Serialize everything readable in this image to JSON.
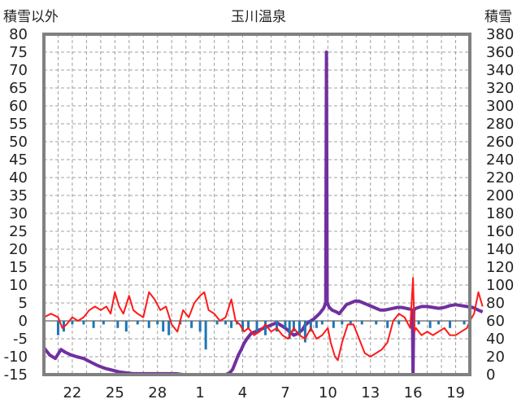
{
  "chart_data": {
    "type": "line",
    "title": "玉川温泉",
    "ylabel_left": "積雪以外",
    "ylabel_right": "積雪",
    "ylim_left": [
      -15,
      80
    ],
    "ylim_right": [
      0,
      380
    ],
    "yticks_left": [
      80,
      75,
      70,
      65,
      60,
      55,
      50,
      45,
      40,
      35,
      30,
      25,
      20,
      15,
      10,
      5,
      0,
      -5,
      -10,
      -15
    ],
    "yticks_right": [
      380,
      360,
      340,
      320,
      300,
      280,
      260,
      240,
      220,
      200,
      180,
      160,
      140,
      120,
      100,
      80,
      60,
      40,
      20,
      0
    ],
    "xlim": [
      20,
      50
    ],
    "xticks": [
      {
        "x": 22,
        "label": "22"
      },
      {
        "x": 25,
        "label": "25"
      },
      {
        "x": 28,
        "label": "28"
      },
      {
        "x": 31,
        "label": "1"
      },
      {
        "x": 34,
        "label": "4"
      },
      {
        "x": 37,
        "label": "7"
      },
      {
        "x": 40,
        "label": "10"
      },
      {
        "x": 43,
        "label": "13"
      },
      {
        "x": 46,
        "label": "16"
      },
      {
        "x": 49,
        "label": "19"
      }
    ],
    "grid": true,
    "colors": {
      "temperature": "#ff1a1a",
      "snow_depth": "#7030a0",
      "precipitation": "#1f77b4",
      "frame": "#808080",
      "grid": "#a0a0a0"
    },
    "series": [
      {
        "key": "temperature",
        "axis": "left",
        "x": [
          20.0,
          20.5,
          21.0,
          21.3,
          21.6,
          22.0,
          22.4,
          22.8,
          23.2,
          23.6,
          24.0,
          24.4,
          24.7,
          25.0,
          25.3,
          25.6,
          26.0,
          26.3,
          26.6,
          27.0,
          27.4,
          27.8,
          28.2,
          28.6,
          29.0,
          29.4,
          29.8,
          30.2,
          30.6,
          31.0,
          31.3,
          31.6,
          32.0,
          32.4,
          32.8,
          33.2,
          33.5,
          33.8,
          34.1,
          34.4,
          34.8,
          35.2,
          35.6,
          36.0,
          36.4,
          36.8,
          37.2,
          37.6,
          38.0,
          38.4,
          38.8,
          39.2,
          39.6,
          40.0,
          40.2,
          40.5,
          40.7,
          41.0,
          41.4,
          41.8,
          42.2,
          42.6,
          43.0,
          43.4,
          43.8,
          44.2,
          44.6,
          45.0,
          45.4,
          45.8,
          46.0,
          46.1,
          46.2,
          46.6,
          47.0,
          47.4,
          47.8,
          48.2,
          48.6,
          49.0,
          49.4,
          49.8,
          50.0,
          50.3,
          50.6,
          50.9
        ],
        "y": [
          1,
          2,
          1,
          -2,
          -1,
          1,
          0,
          1,
          3,
          4,
          3,
          4,
          2,
          8,
          4,
          2,
          7,
          3,
          2,
          1,
          8,
          6,
          3,
          4,
          -1,
          -3,
          3,
          1,
          5,
          7,
          8,
          3,
          2,
          0,
          1,
          6,
          0,
          -1,
          -3,
          -2,
          -4,
          -3,
          -1,
          -3,
          -2,
          -4,
          -5,
          -2,
          -4,
          -5,
          -2,
          -5,
          -4,
          -2,
          -6,
          -10,
          -11,
          -6,
          -1,
          -1,
          -5,
          -9,
          -10,
          -9,
          -8,
          -6,
          0,
          2,
          1,
          -2,
          12,
          -3,
          -2,
          -4,
          -3,
          -4,
          -3,
          -2,
          -4,
          -4,
          -3,
          -2,
          0,
          2,
          8,
          4
        ]
      },
      {
        "key": "snow_depth",
        "axis": "right",
        "x": [
          20.0,
          20.4,
          20.8,
          21.2,
          21.5,
          21.9,
          22.3,
          22.8,
          23.3,
          23.8,
          24.3,
          24.8,
          25.3,
          25.8,
          26.3,
          26.8,
          27.3,
          27.8,
          28.3,
          28.8,
          29.3,
          29.8,
          30.3,
          30.8,
          31.3,
          31.8,
          32.3,
          32.8,
          33.1,
          33.3,
          33.5,
          33.7,
          33.9,
          34.1,
          34.3,
          34.6,
          34.9,
          35.2,
          35.5,
          35.8,
          36.1,
          36.4,
          36.7,
          37.0,
          37.3,
          37.6,
          37.9,
          38.2,
          38.4,
          38.6,
          38.8,
          39.0,
          39.2,
          39.4,
          39.7,
          39.85,
          39.9,
          39.95,
          40.1,
          40.3,
          40.6,
          40.8,
          41.0,
          41.3,
          41.6,
          41.9,
          42.2,
          42.5,
          42.8,
          43.1,
          43.4,
          43.7,
          44.0,
          44.3,
          44.6,
          44.9,
          45.2,
          45.5,
          45.8,
          45.95,
          46.0,
          46.05,
          46.2,
          46.6,
          47.0,
          47.4,
          47.8,
          48.2,
          48.6,
          49.0,
          49.4,
          49.8,
          50.2,
          50.6,
          50.9
        ],
        "y": [
          30,
          22,
          18,
          28,
          25,
          22,
          20,
          18,
          14,
          10,
          7,
          5,
          3,
          2,
          1,
          1,
          1,
          1,
          1,
          1,
          1,
          0,
          0,
          0,
          0,
          0,
          0,
          0,
          2,
          6,
          14,
          22,
          28,
          35,
          40,
          46,
          48,
          50,
          52,
          54,
          56,
          58,
          55,
          52,
          48,
          44,
          46,
          50,
          55,
          58,
          60,
          62,
          65,
          68,
          74,
          80,
          360,
          80,
          75,
          72,
          70,
          68,
          72,
          78,
          80,
          82,
          82,
          80,
          78,
          76,
          74,
          72,
          72,
          73,
          74,
          75,
          75,
          74,
          73,
          72,
          0,
          72,
          74,
          76,
          76,
          75,
          74,
          75,
          77,
          78,
          77,
          76,
          75,
          72,
          70
        ]
      },
      {
        "key": "precipitation",
        "axis": "left",
        "type": "bar",
        "x": [
          21.0,
          21.4,
          22.0,
          22.8,
          23.5,
          24.2,
          25.2,
          25.8,
          26.6,
          27.4,
          28.0,
          28.4,
          28.8,
          29.6,
          30.4,
          31.0,
          31.4,
          32.2,
          32.8,
          33.2,
          33.6,
          34.0,
          34.4,
          35.0,
          35.6,
          36.4,
          37.0,
          37.3,
          37.6,
          38.0,
          38.4,
          38.8,
          39.2,
          39.6,
          40.4,
          41.0,
          41.6,
          42.4,
          43.4,
          44.2,
          45.0,
          46.4,
          47.2,
          47.8,
          48.6,
          49.6
        ],
        "y": [
          -4,
          -3,
          -1,
          -1,
          -2,
          -1,
          -2,
          -3,
          -1,
          -2,
          -1,
          -3,
          -4,
          -1,
          -2,
          -3,
          -8,
          -1,
          -1,
          -2,
          -1,
          -3,
          -2,
          -3,
          -4,
          -3,
          -2,
          -5,
          -3,
          -4,
          -6,
          -3,
          -2,
          -1,
          -2,
          -1,
          -1,
          -1,
          -1,
          -2,
          -1,
          -1,
          -2,
          -1,
          -2,
          -1
        ]
      }
    ]
  }
}
